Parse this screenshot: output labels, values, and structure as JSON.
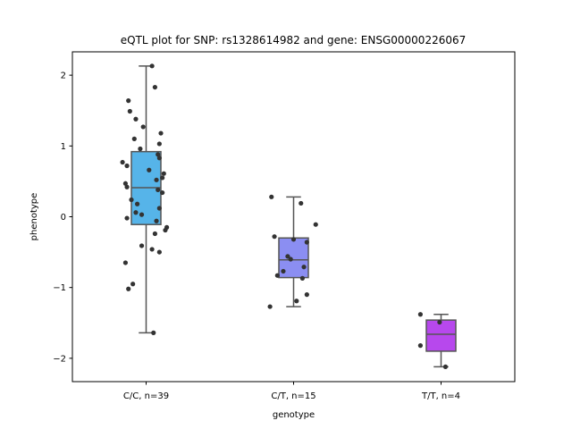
{
  "chart_data": {
    "type": "box",
    "title": "eQTL plot for SNP: rs1328614982 and gene: ENSG00000226067",
    "xlabel": "genotype",
    "ylabel": "phenotype",
    "ylim": [
      -2.33,
      2.33
    ],
    "yticks": [
      -2,
      -1,
      0,
      1,
      2
    ],
    "ytick_labels": [
      "−2",
      "−1",
      "0",
      "1",
      "2"
    ],
    "grid": false,
    "groups": [
      {
        "label": "C/C, n=39",
        "color": "#56b4e9",
        "box": {
          "whisker_low": -1.64,
          "q1": -0.11,
          "median": 0.41,
          "q3": 0.92,
          "whisker_high": 2.13
        },
        "points": [
          {
            "dx": 0.04,
            "y": 2.13
          },
          {
            "dx": 0.06,
            "y": 1.83
          },
          {
            "dx": -0.12,
            "y": 1.64
          },
          {
            "dx": -0.11,
            "y": 1.49
          },
          {
            "dx": -0.07,
            "y": 1.38
          },
          {
            "dx": -0.02,
            "y": 1.27
          },
          {
            "dx": 0.1,
            "y": 1.18
          },
          {
            "dx": -0.08,
            "y": 1.1
          },
          {
            "dx": 0.09,
            "y": 1.03
          },
          {
            "dx": -0.04,
            "y": 0.96
          },
          {
            "dx": 0.08,
            "y": 0.88
          },
          {
            "dx": 0.09,
            "y": 0.83
          },
          {
            "dx": -0.16,
            "y": 0.77
          },
          {
            "dx": -0.13,
            "y": 0.72
          },
          {
            "dx": 0.02,
            "y": 0.66
          },
          {
            "dx": 0.12,
            "y": 0.61
          },
          {
            "dx": 0.11,
            "y": 0.55
          },
          {
            "dx": 0.07,
            "y": 0.52
          },
          {
            "dx": -0.14,
            "y": 0.47
          },
          {
            "dx": -0.13,
            "y": 0.42
          },
          {
            "dx": 0.08,
            "y": 0.38
          },
          {
            "dx": 0.11,
            "y": 0.34
          },
          {
            "dx": -0.1,
            "y": 0.24
          },
          {
            "dx": -0.06,
            "y": 0.18
          },
          {
            "dx": 0.09,
            "y": 0.12
          },
          {
            "dx": -0.07,
            "y": 0.06
          },
          {
            "dx": -0.03,
            "y": 0.03
          },
          {
            "dx": -0.13,
            "y": -0.02
          },
          {
            "dx": 0.07,
            "y": -0.06
          },
          {
            "dx": 0.14,
            "y": -0.15
          },
          {
            "dx": 0.13,
            "y": -0.19
          },
          {
            "dx": 0.06,
            "y": -0.24
          },
          {
            "dx": -0.03,
            "y": -0.41
          },
          {
            "dx": 0.04,
            "y": -0.46
          },
          {
            "dx": 0.09,
            "y": -0.5
          },
          {
            "dx": -0.14,
            "y": -0.65
          },
          {
            "dx": -0.09,
            "y": -0.95
          },
          {
            "dx": -0.12,
            "y": -1.02
          },
          {
            "dx": 0.05,
            "y": -1.64
          }
        ]
      },
      {
        "label": "C/T, n=15",
        "color": "#8b8ef2",
        "box": {
          "whisker_low": -1.27,
          "q1": -0.86,
          "median": -0.61,
          "q3": -0.3,
          "whisker_high": 0.28
        },
        "points": [
          {
            "dx": -0.15,
            "y": 0.28
          },
          {
            "dx": 0.05,
            "y": 0.19
          },
          {
            "dx": 0.15,
            "y": -0.11
          },
          {
            "dx": -0.13,
            "y": -0.28
          },
          {
            "dx": 0.0,
            "y": -0.32
          },
          {
            "dx": 0.09,
            "y": -0.36
          },
          {
            "dx": -0.04,
            "y": -0.56
          },
          {
            "dx": -0.02,
            "y": -0.6
          },
          {
            "dx": 0.07,
            "y": -0.71
          },
          {
            "dx": -0.07,
            "y": -0.77
          },
          {
            "dx": -0.11,
            "y": -0.83
          },
          {
            "dx": 0.06,
            "y": -0.87
          },
          {
            "dx": 0.09,
            "y": -1.1
          },
          {
            "dx": 0.02,
            "y": -1.19
          },
          {
            "dx": -0.16,
            "y": -1.27
          }
        ]
      },
      {
        "label": "T/T, n=4",
        "color": "#b748ed",
        "box": {
          "whisker_low": -2.12,
          "q1": -1.9,
          "median": -1.66,
          "q3": -1.46,
          "whisker_high": -1.38
        },
        "points": [
          {
            "dx": -0.14,
            "y": -1.38
          },
          {
            "dx": -0.01,
            "y": -1.49
          },
          {
            "dx": -0.14,
            "y": -1.82
          },
          {
            "dx": 0.03,
            "y": -2.12
          }
        ]
      }
    ]
  }
}
